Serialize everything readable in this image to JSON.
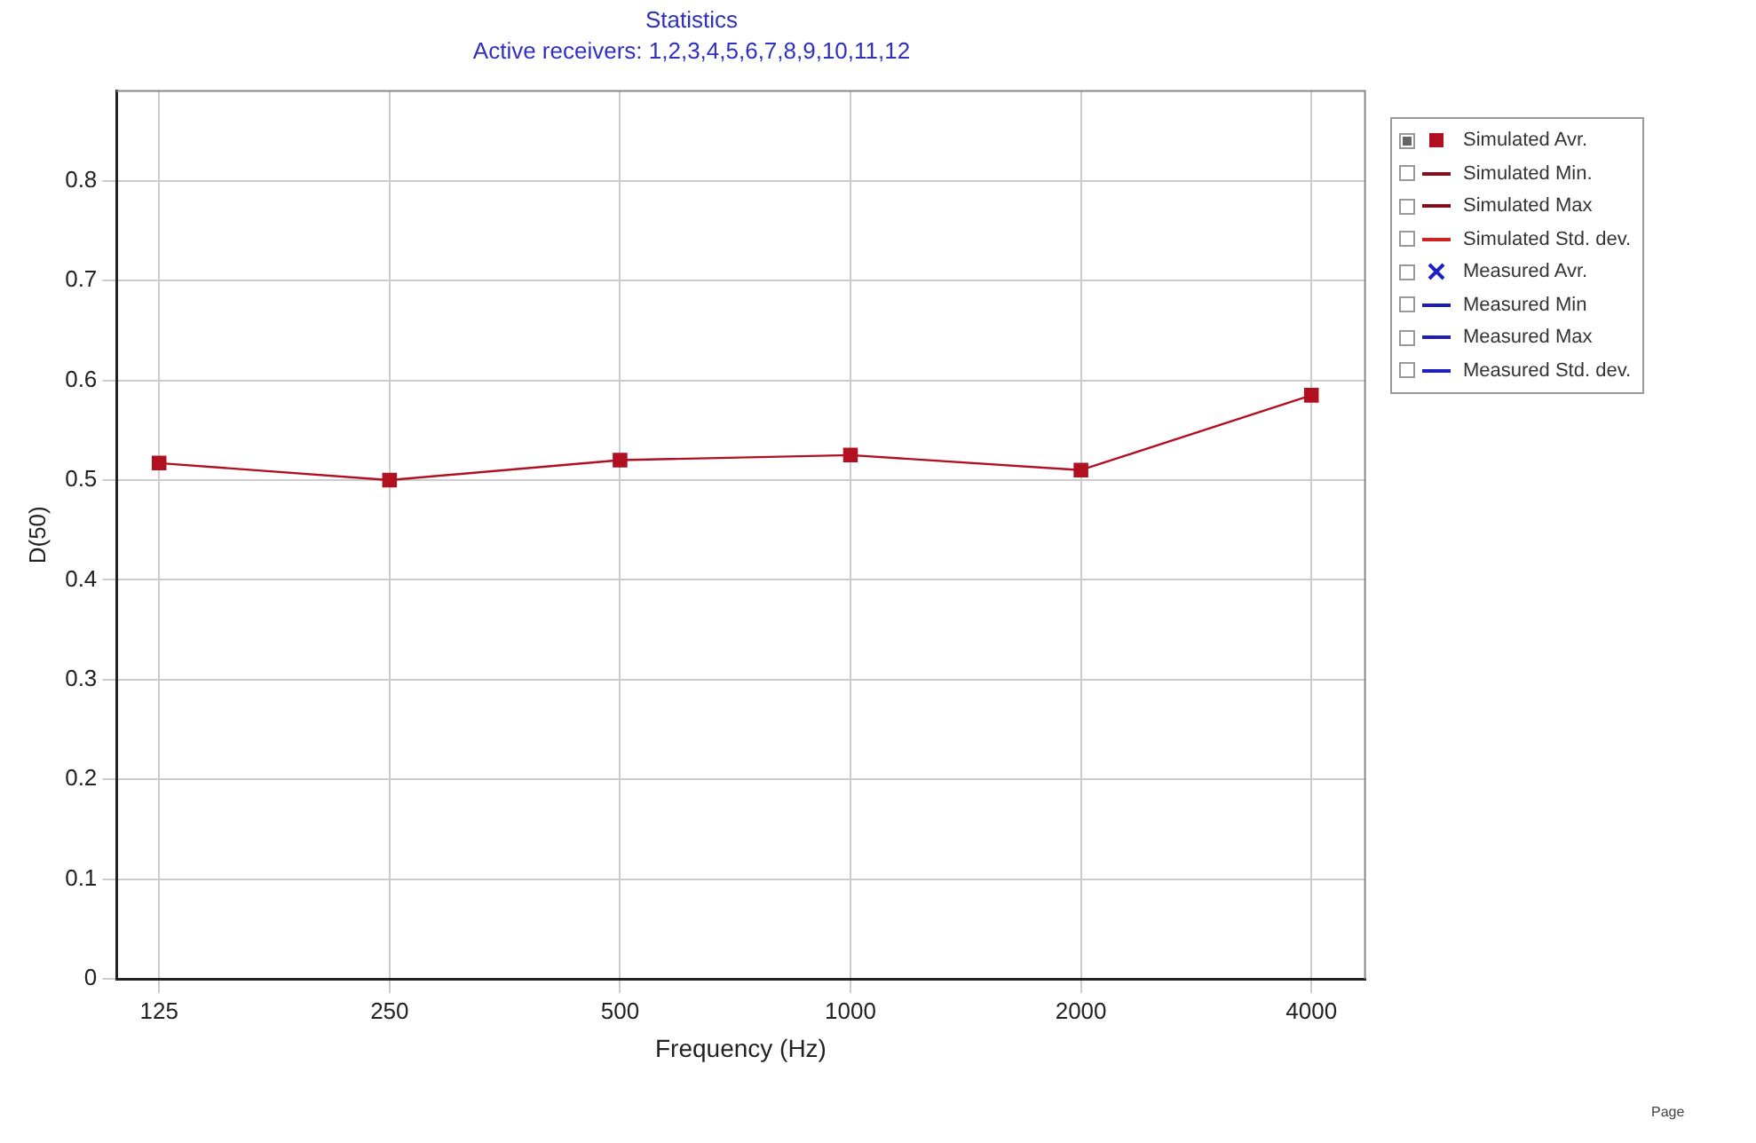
{
  "chart_data": {
    "type": "line",
    "title": "Statistics",
    "subtitle": "Active receivers: 1,2,3,4,5,6,7,8,9,10,11,12",
    "xlabel": "Frequency (Hz)",
    "ylabel": "D(50)",
    "x": [
      125,
      250,
      500,
      1000,
      2000,
      4000
    ],
    "log": "x",
    "xlim": [
      110,
      4700
    ],
    "xticks": [
      125,
      250,
      500,
      1000,
      2000,
      4000
    ],
    "ylim": [
      0,
      0.89
    ],
    "yticks": [
      0,
      0.1,
      0.2,
      0.3,
      0.4,
      0.5,
      0.6,
      0.7,
      0.8
    ],
    "grid": true,
    "legend": "top right",
    "series": [
      {
        "name": "Simulated Avr.",
        "color": "#b01020",
        "marker": "square",
        "values": [
          0.517,
          0.5,
          0.52,
          0.525,
          0.51,
          0.585
        ]
      },
      {
        "name": "Simulated Min.",
        "color": "#801020",
        "marker": "none",
        "values": [
          null,
          null,
          null,
          null,
          null,
          null
        ]
      },
      {
        "name": "Simulated Max",
        "color": "#801020",
        "marker": "none",
        "values": [
          null,
          null,
          null,
          null,
          null,
          null
        ]
      },
      {
        "name": "Simulated Std. dev.",
        "color": "#d02020",
        "marker": "none",
        "values": [
          null,
          null,
          null,
          null,
          null,
          null
        ]
      },
      {
        "name": "Measured Avr.",
        "color": "#2020c0",
        "marker": "cross",
        "values": [
          null,
          null,
          null,
          null,
          null,
          null
        ]
      },
      {
        "name": "Measured Min",
        "color": "#2020a0",
        "marker": "none",
        "values": [
          null,
          null,
          null,
          null,
          null,
          null
        ]
      },
      {
        "name": "Measured Max",
        "color": "#2020a0",
        "marker": "none",
        "values": [
          null,
          null,
          null,
          null,
          null,
          null
        ]
      },
      {
        "name": "Measured Std. dev.",
        "color": "#2020c0",
        "marker": "none",
        "values": [
          null,
          null,
          null,
          null,
          null,
          null
        ]
      }
    ],
    "annotations": [
      "Page"
    ]
  }
}
